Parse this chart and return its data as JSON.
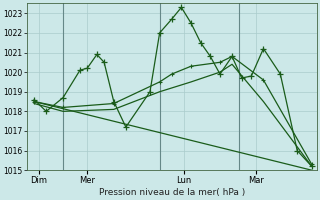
{
  "title": "Pression niveau de la mer( hPa )",
  "bg_color": "#cce8e8",
  "grid_color": "#aacccc",
  "line_color": "#1a5c1a",
  "ylim": [
    1015,
    1023.5
  ],
  "yticks": [
    1015,
    1016,
    1017,
    1018,
    1019,
    1020,
    1021,
    1022,
    1023
  ],
  "day_labels": [
    "Dim",
    "Mer",
    "Lun",
    "Mar"
  ],
  "day_positions": [
    0.5,
    2.5,
    6.5,
    9.5
  ],
  "vline_positions": [
    1.5,
    5.5,
    8.8
  ],
  "xlim": [
    0,
    12
  ],
  "series1_x": [
    0.3,
    0.8,
    1.5,
    2.2,
    2.5,
    2.9,
    3.2,
    3.6,
    4.1,
    5.1,
    5.5,
    6.0,
    6.4,
    6.8,
    7.2,
    7.6,
    8.0,
    8.5,
    8.9,
    9.3,
    9.8,
    10.5,
    11.2,
    11.8
  ],
  "series1_y": [
    1018.6,
    1018.0,
    1018.7,
    1020.1,
    1020.2,
    1020.9,
    1020.5,
    1018.5,
    1017.2,
    1019.0,
    1022.0,
    1022.7,
    1023.3,
    1022.5,
    1021.5,
    1020.8,
    1019.9,
    1020.8,
    1019.7,
    1019.8,
    1021.2,
    1019.9,
    1016.0,
    1015.2
  ],
  "series2_x": [
    0.3,
    1.5,
    3.6,
    5.5,
    6.0,
    6.8,
    8.0,
    8.5,
    9.8,
    11.8
  ],
  "series2_y": [
    1018.5,
    1018.2,
    1018.4,
    1019.5,
    1019.9,
    1020.3,
    1020.5,
    1020.8,
    1019.6,
    1015.3
  ],
  "series3_x": [
    0.3,
    1.5,
    3.6,
    5.5,
    6.8,
    8.0,
    8.5,
    9.8,
    11.8
  ],
  "series3_y": [
    1018.4,
    1018.0,
    1018.1,
    1019.0,
    1019.5,
    1020.0,
    1020.4,
    1018.5,
    1015.2
  ],
  "series4_x": [
    0.3,
    11.8
  ],
  "series4_y": [
    1018.5,
    1015.0
  ]
}
